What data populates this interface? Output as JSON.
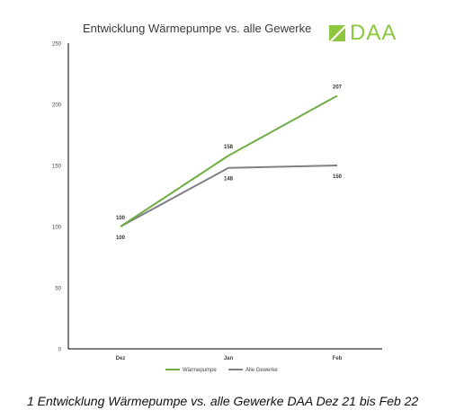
{
  "figure_title": "Entwicklung Wärmepumpe vs. alle Gewerke",
  "logo_text": "DAA",
  "caption": "1 Entwicklung Wärmepumpe vs. alle Gewerke DAA Dez 21 bis Feb 22",
  "colors": {
    "waermepumpe": "#70ad47",
    "alle_gewerke": "#7f7f86",
    "logo": "#8dc63f",
    "axis": "#000000",
    "tick_text": "#444444"
  },
  "chart_data": {
    "type": "line",
    "title": "Entwicklung Wärmepumpe vs. alle Gewerke",
    "xlabel": "",
    "ylabel": "",
    "categories": [
      "Dez",
      "Jan",
      "Feb"
    ],
    "ylim": [
      0,
      250
    ],
    "yticks": [
      0,
      50,
      100,
      150,
      200,
      250
    ],
    "grid": false,
    "legend": "bottom",
    "series": [
      {
        "name": "Wärmepumpe",
        "values": [
          100,
          158,
          207
        ]
      },
      {
        "name": "Alle Gewerke",
        "values": [
          100,
          148,
          150
        ]
      }
    ]
  }
}
